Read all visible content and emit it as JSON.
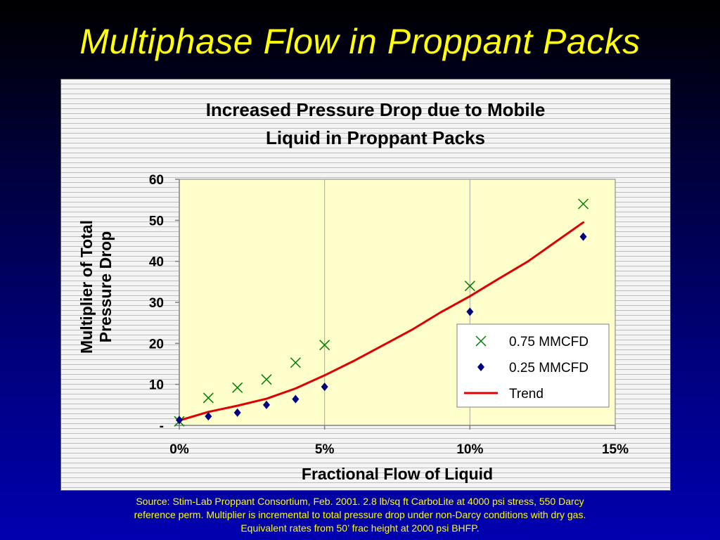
{
  "slide": {
    "title": "Multiphase Flow in Proppant Packs"
  },
  "footnote": {
    "lines": [
      "Source:  Stim-Lab Proppant Consortium, Feb. 2001.  2.8 lb/sq ft CarboLite at 4000 psi stress, 550 Darcy",
      "reference perm.  Multiplier is incremental to total pressure drop under non-Darcy conditions with dry gas.",
      "Equivalent rates from 50’ frac height at 2000 psi BHFP."
    ]
  },
  "chart_data": {
    "type": "scatter",
    "title_lines": [
      "Increased Pressure Drop due to Mobile",
      "Liquid in Proppant Packs"
    ],
    "xlabel": "Fractional Flow of Liquid",
    "ylabel_lines": [
      "Multiplier of Total",
      "Pressure Drop"
    ],
    "xlim": [
      0,
      15
    ],
    "ylim": [
      0,
      60
    ],
    "x_ticks": [
      {
        "value": 0,
        "label": "0%"
      },
      {
        "value": 5,
        "label": "5%"
      },
      {
        "value": 10,
        "label": "10%"
      },
      {
        "value": 15,
        "label": "15%"
      }
    ],
    "y_ticks": [
      {
        "value": 0,
        "label": "-"
      },
      {
        "value": 10,
        "label": "10"
      },
      {
        "value": 20,
        "label": "20"
      },
      {
        "value": 30,
        "label": "30"
      },
      {
        "value": 40,
        "label": "40"
      },
      {
        "value": 50,
        "label": "50"
      },
      {
        "value": 60,
        "label": "60"
      }
    ],
    "grid": "vertical",
    "plot_background": "#ffffcc",
    "legend_position": "right",
    "series": [
      {
        "name": "0.75 MMCFD",
        "kind": "marker",
        "marker": "x",
        "color": "#008000",
        "points": [
          [
            0,
            1
          ],
          [
            1,
            6.7
          ],
          [
            2,
            9.2
          ],
          [
            3,
            11.2
          ],
          [
            4,
            15.3
          ],
          [
            5,
            19.6
          ],
          [
            10,
            34
          ],
          [
            13.9,
            54
          ]
        ]
      },
      {
        "name": "0.25 MMCFD",
        "kind": "marker",
        "marker": "diamond",
        "color": "#000080",
        "points": [
          [
            0,
            1.3
          ],
          [
            1,
            2.2
          ],
          [
            2,
            3.1
          ],
          [
            3,
            5
          ],
          [
            4,
            6.4
          ],
          [
            5,
            9.4
          ],
          [
            10,
            27.7
          ],
          [
            13.9,
            46
          ]
        ]
      },
      {
        "name": "Trend",
        "kind": "line",
        "color": "#e00000",
        "points": [
          [
            0,
            1.2
          ],
          [
            1,
            3.3
          ],
          [
            2,
            4.8
          ],
          [
            3,
            6.5
          ],
          [
            4,
            9
          ],
          [
            5,
            12.2
          ],
          [
            6,
            15.7
          ],
          [
            7,
            19.5
          ],
          [
            8,
            23.3
          ],
          [
            9,
            27.6
          ],
          [
            10,
            31.5
          ],
          [
            11,
            35.8
          ],
          [
            12,
            40
          ],
          [
            13,
            45
          ],
          [
            13.9,
            49.5
          ]
        ]
      }
    ]
  }
}
